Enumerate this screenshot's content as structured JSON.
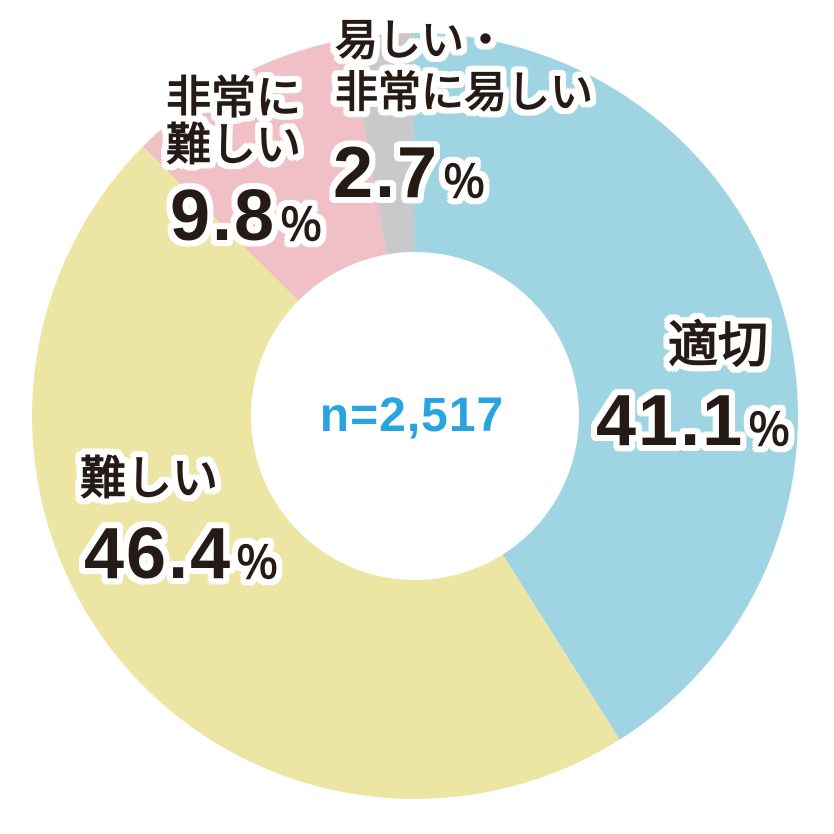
{
  "chart_data": {
    "type": "pie",
    "subtype": "donut",
    "title": "",
    "center_annotation": "n=2,517",
    "center_annotation_color": "#29a4dc",
    "label_text_color": "#251a16",
    "label_outline_color": "#ffffff",
    "total": 100,
    "order": "clockwise-from-top",
    "start_angle_deg": -10,
    "legend_position": "none",
    "segments": [
      {
        "id": "easy",
        "name": "易しい・非常に易しい",
        "lines": [
          "易しい・",
          "非常に易しい"
        ],
        "value": 2.7,
        "value_text": "2.7",
        "unit": "％",
        "color": "#c9c9c9"
      },
      {
        "id": "appropriate",
        "name": "適切",
        "lines": [
          "適切"
        ],
        "value": 41.1,
        "value_text": "41.1",
        "unit": "％",
        "color": "#9fd4e3"
      },
      {
        "id": "difficult",
        "name": "難しい",
        "lines": [
          "難しい"
        ],
        "value": 46.4,
        "value_text": "46.4",
        "unit": "％",
        "color": "#ede5a3"
      },
      {
        "id": "very-difficult",
        "name": "非常に難しい",
        "lines": [
          "非常に",
          "難しい"
        ],
        "value": 9.8,
        "value_text": "9.8",
        "unit": "％",
        "color": "#f0c0c6"
      }
    ]
  }
}
